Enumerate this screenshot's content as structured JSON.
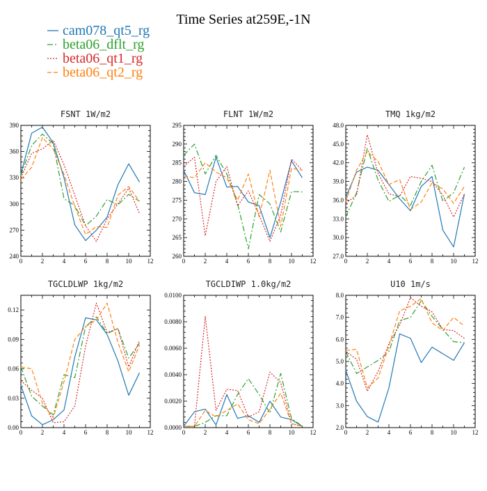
{
  "figure": {
    "title": "Time Series at259E,-1N",
    "legend": [
      {
        "name": "cam078_qt5_rg",
        "color": "#1f77b4",
        "dash": ""
      },
      {
        "name": "beta06_dflt_rg",
        "color": "#2ca02c",
        "dash": "8,3,2,3"
      },
      {
        "name": "beta06_qt1_rg",
        "color": "#d62728",
        "dash": "2,2"
      },
      {
        "name": "beta06_qt2_rg",
        "color": "#ff7f0e",
        "dash": "6,3"
      }
    ]
  },
  "chart_data": [
    {
      "type": "line",
      "title": "FSNT   1W/m2",
      "x": [
        0,
        1,
        2,
        3,
        4,
        5,
        6,
        7,
        8,
        9,
        10,
        11
      ],
      "xlim": [
        0,
        12
      ],
      "xticks": [
        0,
        2,
        4,
        6,
        8,
        10,
        12
      ],
      "ylim": [
        240,
        390
      ],
      "yticks": [
        {
          "v": 240,
          "l": "240"
        },
        {
          "v": 270,
          "l": "270"
        },
        {
          "v": 300,
          "l": "300"
        },
        {
          "v": 330,
          "l": "330"
        },
        {
          "v": 360,
          "l": "360"
        },
        {
          "v": 390,
          "l": "390"
        }
      ],
      "series": [
        {
          "name": "cam078_qt5_rg",
          "values": [
            334,
            381,
            388,
            370,
            330,
            276,
            258,
            270,
            285,
            322,
            346,
            325
          ]
        },
        {
          "name": "beta06_dflt_rg",
          "values": [
            333,
            367,
            380,
            369,
            306,
            298,
            275,
            286,
            305,
            299,
            311,
            303
          ]
        },
        {
          "name": "beta06_qt1_rg",
          "values": [
            330,
            358,
            363,
            373,
            345,
            310,
            275,
            257,
            283,
            300,
            318,
            289
          ]
        },
        {
          "name": "beta06_qt2_rg",
          "values": [
            328,
            342,
            376,
            363,
            334,
            297,
            265,
            274,
            273,
            310,
            320,
            303
          ]
        }
      ]
    },
    {
      "type": "line",
      "title": "FLNT   1W/m2",
      "x": [
        0,
        1,
        2,
        3,
        4,
        5,
        6,
        7,
        8,
        9,
        10,
        11
      ],
      "xlim": [
        0,
        12
      ],
      "xticks": [
        0,
        2,
        4,
        6,
        8,
        10,
        12
      ],
      "ylim": [
        260,
        295
      ],
      "yticks": [
        {
          "v": 260,
          "l": "260"
        },
        {
          "v": 265,
          "l": "265"
        },
        {
          "v": 270,
          "l": "270"
        },
        {
          "v": 275,
          "l": "275"
        },
        {
          "v": 280,
          "l": "280"
        },
        {
          "v": 285,
          "l": "285"
        },
        {
          "v": 290,
          "l": "290"
        },
        {
          "v": 295,
          "l": "295"
        }
      ],
      "series": [
        {
          "name": "cam078_qt5_rg",
          "values": [
            283,
            277,
            276.5,
            286.5,
            278.5,
            278.7,
            274.5,
            273.5,
            265,
            274.5,
            285.5,
            281
          ]
        },
        {
          "name": "beta06_dflt_rg",
          "values": [
            287,
            290,
            282,
            287,
            282,
            274,
            262,
            276.5,
            274,
            266.5,
            277.3,
            277.2
          ]
        },
        {
          "name": "beta06_qt1_rg",
          "values": [
            284,
            286.5,
            265.5,
            280,
            284,
            273.5,
            277.5,
            271,
            264,
            271,
            286,
            283
          ]
        },
        {
          "name": "beta06_qt2_rg",
          "values": [
            281.5,
            281,
            285,
            282.5,
            281,
            275,
            282,
            270.5,
            283,
            268,
            283.5,
            283
          ]
        }
      ]
    },
    {
      "type": "line",
      "title": "TMQ   1kg/m2",
      "x": [
        0,
        1,
        2,
        3,
        4,
        5,
        6,
        7,
        8,
        9,
        10,
        11
      ],
      "xlim": [
        0,
        12
      ],
      "xticks": [
        0,
        2,
        4,
        6,
        8,
        10,
        12
      ],
      "ylim": [
        27.0,
        48.0
      ],
      "yticks": [
        {
          "v": 27,
          "l": "27.0"
        },
        {
          "v": 30,
          "l": "30.0"
        },
        {
          "v": 33,
          "l": "33.0"
        },
        {
          "v": 36,
          "l": "36.0"
        },
        {
          "v": 39,
          "l": "39.0"
        },
        {
          "v": 42,
          "l": "42.0"
        },
        {
          "v": 45,
          "l": "45.0"
        },
        {
          "v": 48,
          "l": "48.0"
        }
      ],
      "series": [
        {
          "name": "cam078_qt5_rg",
          "values": [
            36.5,
            40.5,
            41.3,
            40.8,
            38.5,
            36.2,
            34.3,
            38.2,
            39.8,
            31.2,
            28.5,
            37.0
          ]
        },
        {
          "name": "beta06_dflt_rg",
          "values": [
            33.3,
            37.2,
            44.3,
            39.2,
            35.8,
            36.8,
            35.2,
            39.0,
            41.6,
            35.8,
            37.2,
            41.3
          ]
        },
        {
          "name": "beta06_qt1_rg",
          "values": [
            35.5,
            36.8,
            46.5,
            40.3,
            37.0,
            36.6,
            39.8,
            39.5,
            39.0,
            36.8,
            33.3,
            37.0
          ]
        },
        {
          "name": "beta06_qt2_rg",
          "values": [
            35.8,
            40.8,
            43.8,
            42.2,
            38.5,
            39.3,
            34.5,
            35.7,
            38.8,
            37.8,
            35.5,
            38.2
          ]
        }
      ]
    },
    {
      "type": "line",
      "title": "TGCLDLWP   1kg/m2",
      "x": [
        0,
        1,
        2,
        3,
        4,
        5,
        6,
        7,
        8,
        9,
        10,
        11
      ],
      "xlim": [
        0,
        12
      ],
      "xticks": [
        0,
        2,
        4,
        6,
        8,
        10,
        12
      ],
      "ylim": [
        0.0,
        0.135
      ],
      "yticks": [
        {
          "v": 0,
          "l": "0.00"
        },
        {
          "v": 0.03,
          "l": "0.03"
        },
        {
          "v": 0.06,
          "l": "0.06"
        },
        {
          "v": 0.09,
          "l": "0.09"
        },
        {
          "v": 0.12,
          "l": "0.12"
        }
      ],
      "series": [
        {
          "name": "cam078_qt5_rg",
          "values": [
            0.043,
            0.012,
            0.003,
            0.008,
            0.018,
            0.072,
            0.112,
            0.11,
            0.095,
            0.068,
            0.033,
            0.056
          ]
        },
        {
          "name": "beta06_dflt_rg",
          "values": [
            0.062,
            0.032,
            0.022,
            0.013,
            0.054,
            0.051,
            0.103,
            0.113,
            0.096,
            0.101,
            0.071,
            0.086
          ]
        },
        {
          "name": "beta06_qt1_rg",
          "values": [
            0.048,
            0.038,
            0.03,
            0.005,
            0.006,
            0.022,
            0.083,
            0.127,
            0.097,
            0.101,
            0.062,
            0.089
          ]
        },
        {
          "name": "beta06_qt2_rg",
          "values": [
            0.062,
            0.06,
            0.025,
            0.01,
            0.047,
            0.09,
            0.103,
            0.11,
            0.127,
            0.087,
            0.057,
            0.084
          ]
        }
      ]
    },
    {
      "type": "line",
      "title": "TGCLDIWP   1.0kg/m2",
      "x": [
        0,
        1,
        2,
        3,
        4,
        5,
        6,
        7,
        8,
        9,
        10,
        11
      ],
      "xlim": [
        0,
        12
      ],
      "xticks": [
        0,
        2,
        4,
        6,
        8,
        10,
        12
      ],
      "ylim": [
        0.0,
        0.01
      ],
      "yticks": [
        {
          "v": 0,
          "l": "0.0000"
        },
        {
          "v": 0.002,
          "l": "0.0020"
        },
        {
          "v": 0.004,
          "l": "0.0040"
        },
        {
          "v": 0.006,
          "l": "0.0060"
        },
        {
          "v": 0.008,
          "l": "0.0080"
        },
        {
          "v": 0.01,
          "l": "0.0100"
        }
      ],
      "series": [
        {
          "name": "cam078_qt5_rg",
          "values": [
            0.0001,
            0.0012,
            0.0014,
            0.0002,
            0.0025,
            0.0007,
            0.0009,
            0.0004,
            0.002,
            0.0008,
            0.0006,
            0.0001
          ]
        },
        {
          "name": "beta06_dflt_rg",
          "values": [
            0.0001,
            0.0001,
            0.0004,
            0.0009,
            0.0009,
            0.0025,
            0.0037,
            0.0025,
            0.0011,
            0.0041,
            0.0007,
            0.0001
          ]
        },
        {
          "name": "beta06_qt1_rg",
          "values": [
            0.0001,
            0.0001,
            0.0084,
            0.0013,
            0.0029,
            0.0028,
            0.0008,
            0.0012,
            0.0042,
            0.0034,
            0.0003,
            0.0001
          ]
        },
        {
          "name": "beta06_qt2_rg",
          "values": [
            0.0001,
            0.0001,
            0.0013,
            0.0008,
            0.0013,
            0.0018,
            0.0006,
            0.0003,
            0.0014,
            0.0026,
            0.0003,
            0.0001
          ]
        }
      ]
    },
    {
      "type": "line",
      "title": "U10   1m/s",
      "x": [
        0,
        1,
        2,
        3,
        4,
        5,
        6,
        7,
        8,
        9,
        10,
        11
      ],
      "xlim": [
        0,
        12
      ],
      "xticks": [
        0,
        2,
        4,
        6,
        8,
        10,
        12
      ],
      "ylim": [
        2.0,
        8.0
      ],
      "yticks": [
        {
          "v": 2,
          "l": "2.0"
        },
        {
          "v": 3,
          "l": "3.0"
        },
        {
          "v": 4,
          "l": "4.0"
        },
        {
          "v": 5,
          "l": "5.0"
        },
        {
          "v": 6,
          "l": "6.0"
        },
        {
          "v": 7,
          "l": "7.0"
        },
        {
          "v": 8,
          "l": "8.0"
        }
      ],
      "series": [
        {
          "name": "cam078_qt5_rg",
          "values": [
            4.6,
            3.2,
            2.5,
            2.25,
            3.8,
            6.25,
            6.05,
            4.95,
            5.65,
            5.35,
            5.05,
            5.85
          ]
        },
        {
          "name": "beta06_dflt_rg",
          "values": [
            5.45,
            4.45,
            4.75,
            5.05,
            5.45,
            6.85,
            7.0,
            7.75,
            7.05,
            6.45,
            5.9,
            5.85
          ]
        },
        {
          "name": "beta06_qt1_rg",
          "values": [
            5.45,
            5.1,
            3.65,
            4.55,
            5.8,
            6.65,
            7.9,
            7.5,
            7.25,
            6.45,
            6.4,
            6.05
          ]
        },
        {
          "name": "beta06_qt2_rg",
          "values": [
            5.5,
            5.55,
            3.8,
            4.25,
            5.7,
            7.3,
            7.5,
            7.85,
            6.75,
            6.4,
            7.0,
            6.6
          ]
        }
      ]
    }
  ]
}
